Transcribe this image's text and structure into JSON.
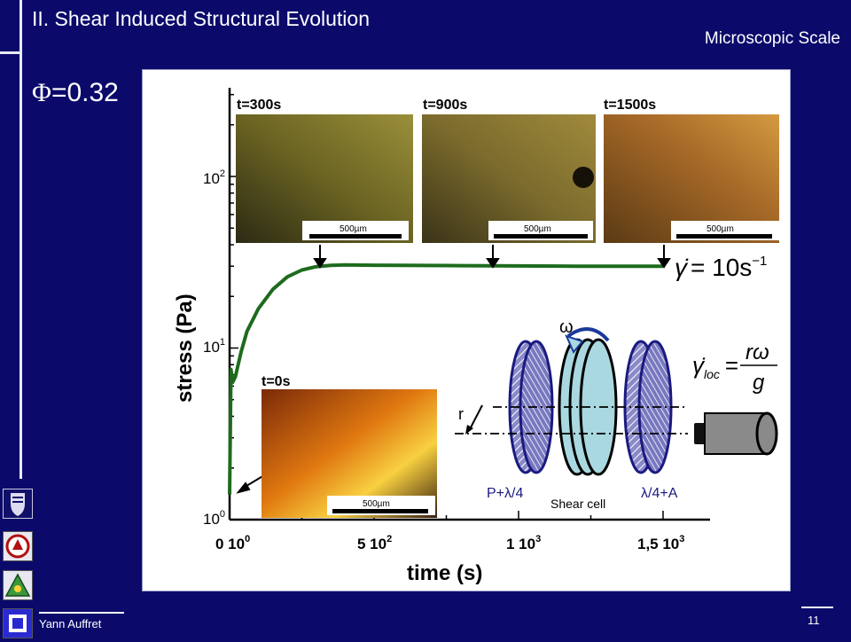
{
  "slide": {
    "title": "II. Shear Induced Structural Evolution",
    "subtitle": "Microscopic Scale",
    "phi_symbol": "Φ",
    "phi_value": "=0.32",
    "author": "Yann Auffret",
    "page_number": "11"
  },
  "logos": [
    "university-of-melbourne-logo",
    "institute-logo-red",
    "institute-logo-green",
    "institute-logo-blue"
  ],
  "figure": {
    "ylabel": "stress (Pa)",
    "xlabel": "time (s)",
    "y_ticks": [
      {
        "base": "10",
        "exp": "0"
      },
      {
        "base": "10",
        "exp": "1"
      },
      {
        "base": "10",
        "exp": "2"
      }
    ],
    "x_ticks": [
      {
        "lead": "0 10",
        "exp": "0"
      },
      {
        "lead": "5 10",
        "exp": "2"
      },
      {
        "lead": "1 10",
        "exp": "3"
      },
      {
        "lead": "1,5 10",
        "exp": "3"
      }
    ],
    "micrographs": [
      {
        "label": "t=300s",
        "scale": "500µm",
        "colors": [
          "#2c2a14",
          "#6a6322",
          "#9a8f3a"
        ]
      },
      {
        "label": "t=900s",
        "scale": "500µm",
        "colors": [
          "#3a3318",
          "#7a6a2c",
          "#a08a3c"
        ]
      },
      {
        "label": "t=1500s",
        "scale": "500µm",
        "colors": [
          "#5a3a14",
          "#a86a28",
          "#d49a40"
        ]
      },
      {
        "label": "t=0s",
        "scale": "500µm",
        "colors": [
          "#7a2a08",
          "#e07810",
          "#f8d040"
        ]
      }
    ],
    "shear_rate": {
      "lhs": "γ̇",
      "rhs": "= 10s",
      "exp": "−1"
    },
    "local_rate": {
      "lhs": "γ̇",
      "sub": "loc",
      "numerator": "rω",
      "denominator": "g"
    },
    "setup": {
      "omega": "ω",
      "r_label": "r",
      "left_label": "P+λ/4",
      "center_label": "Shear cell",
      "right_label": "λ/4+A"
    }
  },
  "chart_data": {
    "type": "line",
    "title": "",
    "xlabel": "time (s)",
    "ylabel": "stress (Pa)",
    "y_scale": "log",
    "xlim": [
      0,
      1600
    ],
    "ylim": [
      1,
      300
    ],
    "series": [
      {
        "x": [
          0,
          5,
          10,
          20,
          40,
          60,
          100,
          150,
          200,
          250,
          300,
          350,
          400,
          500,
          600,
          800,
          1000,
          1200,
          1400,
          1500
        ],
        "y": [
          1.4,
          7.5,
          6.3,
          6.8,
          9.5,
          12.5,
          17,
          22,
          26,
          28.5,
          29.8,
          30.3,
          30.5,
          30.4,
          30.3,
          30.2,
          30.1,
          30,
          30,
          30
        ]
      }
    ],
    "color": "#1e6b1e"
  }
}
